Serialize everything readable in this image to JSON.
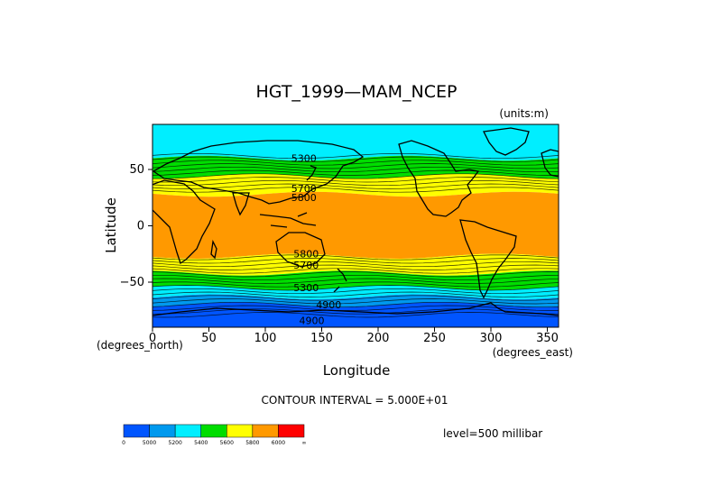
{
  "chart_data": {
    "type": "heatmap",
    "title": "HGT_1999—MAM_NCEP",
    "units_note": "(units:m)",
    "xlabel": "Longitude",
    "ylabel": "Latitude",
    "x_unit_note": "(degrees_east)",
    "y_unit_note": "(degrees_north)",
    "xlim": [
      0,
      360
    ],
    "ylim": [
      -90,
      90
    ],
    "x_ticks": [
      0,
      50,
      100,
      150,
      200,
      250,
      300,
      350
    ],
    "y_ticks": [
      -50,
      0,
      50
    ],
    "contour_interval_label": "CONTOUR INTERVAL = 5.000E+01",
    "level_label": "level=500 millibar",
    "contour_labels": [
      {
        "text": "5300",
        "lon": 123,
        "lat": 57
      },
      {
        "text": "5700",
        "lon": 123,
        "lat": 30
      },
      {
        "text": "5800",
        "lon": 123,
        "lat": 22
      },
      {
        "text": "5800",
        "lon": 125,
        "lat": -28
      },
      {
        "text": "5700",
        "lon": 125,
        "lat": -38
      },
      {
        "text": "5300",
        "lon": 125,
        "lat": -58
      },
      {
        "text": "4900",
        "lon": 145,
        "lat": -73
      },
      {
        "text": "4900",
        "lon": 130,
        "lat": -87
      }
    ],
    "colorbar": {
      "colors": [
        "#0055ff",
        "#0099ee",
        "#00eeff",
        "#00dd00",
        "#ffff00",
        "#ff9900",
        "#ff0000"
      ],
      "tick_labels": [
        "0",
        "5000",
        "5200",
        "5400",
        "5600",
        "5800",
        "6000",
        "∞"
      ]
    },
    "bands": [
      {
        "lat_from": 90,
        "lat_to": 60,
        "color": "#00eeff",
        "range": "5200-5400"
      },
      {
        "lat_from": 60,
        "lat_to": 44,
        "color": "#00dd00",
        "range": "5400-5600"
      },
      {
        "lat_from": 44,
        "lat_to": 28,
        "color": "#ffff00",
        "range": "5600-5800"
      },
      {
        "lat_from": 28,
        "lat_to": -27,
        "color": "#ff9900",
        "range": "5800-6000"
      },
      {
        "lat_from": -27,
        "lat_to": -42,
        "color": "#ffff00",
        "range": "5600-5800"
      },
      {
        "lat_from": -42,
        "lat_to": -55,
        "color": "#00dd00",
        "range": "5400-5600"
      },
      {
        "lat_from": -55,
        "lat_to": -63,
        "color": "#00eeff",
        "range": "5200-5400"
      },
      {
        "lat_from": -63,
        "lat_to": -70,
        "color": "#0099ee",
        "range": "5000-5200"
      },
      {
        "lat_from": -70,
        "lat_to": -90,
        "color": "#0055ff",
        "range": "0-5000"
      }
    ]
  }
}
